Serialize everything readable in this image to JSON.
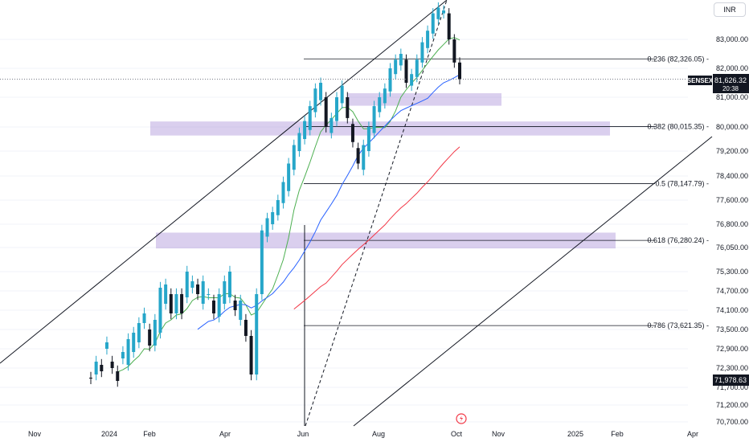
{
  "currency_label": "INR",
  "symbol_tag": "SENSEX",
  "price_tag": {
    "price": "81,626.32",
    "countdown": "20:38"
  },
  "low_tag": "71,978.63",
  "colors": {
    "up": "#26a6c9",
    "down": "#131722",
    "ma_short": "#4caf50",
    "ma_mid": "#2962ff",
    "ma_long": "#f23645",
    "zone": "#9575cd",
    "line": "#131722",
    "grid": "#f0f3fa"
  },
  "chart_data": {
    "type": "candlestick",
    "instrument": "SENSEX",
    "currency": "INR",
    "ylim": [
      70500,
      84100
    ],
    "y_ticks": [
      {
        "v": 83000,
        "label": "83,000.00"
      },
      {
        "v": 82000,
        "label": "82,000.00"
      },
      {
        "v": 81000,
        "label": "81,000.00"
      },
      {
        "v": 80000,
        "label": "80,000.00"
      },
      {
        "v": 79200,
        "label": "79,200.00"
      },
      {
        "v": 78400,
        "label": "78,400.00"
      },
      {
        "v": 77600,
        "label": "77,600.00"
      },
      {
        "v": 76800,
        "label": "76,800.00"
      },
      {
        "v": 76050,
        "label": "76,050.00"
      },
      {
        "v": 75300,
        "label": "75,300.00"
      },
      {
        "v": 74700,
        "label": "74,700.00"
      },
      {
        "v": 74100,
        "label": "74,100.00"
      },
      {
        "v": 73500,
        "label": "73,500.00"
      },
      {
        "v": 72900,
        "label": "72,900.00"
      },
      {
        "v": 72300,
        "label": "72,300.00"
      },
      {
        "v": 71700,
        "label": "71,700.00"
      },
      {
        "v": 71200,
        "label": "71,200.00"
      },
      {
        "v": 70700,
        "label": "70,700.00"
      }
    ],
    "x_labels": [
      "Nov",
      "2024",
      "Feb",
      "Apr",
      "Jun",
      "Aug",
      "Oct",
      "Nov",
      "2025",
      "Feb",
      "Apr"
    ],
    "fib_levels": [
      {
        "ratio": "0.236",
        "value": 82326.05,
        "label": "0.236 (82,326.05)"
      },
      {
        "ratio": "0.382",
        "value": 80015.35,
        "label": "0.382 (80,015.35)"
      },
      {
        "ratio": "0.5",
        "value": 78147.79,
        "label": "0.5 (78,147.79)"
      },
      {
        "ratio": "0.618",
        "value": 76280.24,
        "label": "0.618 (76,280.24)"
      },
      {
        "ratio": "0.786",
        "value": 73621.35,
        "label": "0.786 (73,621.35)"
      }
    ],
    "last_price": 81626.32,
    "marked_low": 71978.63,
    "zones": [
      {
        "from": 80850,
        "to": 81000
      },
      {
        "from": 79850,
        "to": 80050
      },
      {
        "from": 76150,
        "to": 76400
      }
    ],
    "price_path": [
      [
        72000,
        71980
      ],
      [
        72100,
        72500
      ],
      [
        72400,
        72200
      ],
      [
        72900,
        73100
      ],
      [
        72500,
        72300
      ],
      [
        72200,
        71900
      ],
      [
        72600,
        72800
      ],
      [
        72400,
        73200
      ],
      [
        72800,
        73400
      ],
      [
        73100,
        73700
      ],
      [
        73700,
        74000
      ],
      [
        73500,
        73000
      ],
      [
        73000,
        73800
      ],
      [
        73400,
        74800
      ],
      [
        74300,
        74900
      ],
      [
        74600,
        74000
      ],
      [
        74000,
        74600
      ],
      [
        74600,
        74000
      ],
      [
        74500,
        75300
      ],
      [
        74800,
        75000
      ],
      [
        74900,
        74600
      ],
      [
        74300,
        75000
      ],
      [
        74600,
        74600
      ],
      [
        74400,
        74000
      ],
      [
        73900,
        74600
      ],
      [
        74300,
        75000
      ],
      [
        74500,
        75300
      ],
      [
        74400,
        74100
      ],
      [
        73800,
        74400
      ],
      [
        73800,
        73300
      ],
      [
        73300,
        72100
      ],
      [
        72100,
        74600
      ],
      [
        74600,
        76600
      ],
      [
        76400,
        77000
      ],
      [
        76800,
        77200
      ],
      [
        77100,
        77600
      ],
      [
        77500,
        78200
      ],
      [
        77900,
        78800
      ],
      [
        78600,
        79400
      ],
      [
        79200,
        79800
      ],
      [
        79600,
        80200
      ],
      [
        79900,
        80700
      ],
      [
        80500,
        81300
      ],
      [
        80900,
        81500
      ],
      [
        81000,
        80000
      ],
      [
        79800,
        80300
      ],
      [
        80200,
        81000
      ],
      [
        80800,
        81400
      ],
      [
        81000,
        80300
      ],
      [
        80100,
        79500
      ],
      [
        79300,
        78800
      ],
      [
        78600,
        79400
      ],
      [
        79200,
        80000
      ],
      [
        79800,
        80700
      ],
      [
        80500,
        81000
      ],
      [
        80800,
        81300
      ],
      [
        81200,
        82000
      ],
      [
        81800,
        82300
      ],
      [
        82100,
        82500
      ],
      [
        82300,
        81500
      ],
      [
        81400,
        81800
      ],
      [
        81700,
        82300
      ],
      [
        82200,
        82900
      ],
      [
        82700,
        83300
      ],
      [
        83200,
        83900
      ],
      [
        83700,
        84100
      ],
      [
        83900,
        84000
      ],
      [
        83900,
        83000
      ],
      [
        83000,
        82200
      ],
      [
        82200,
        81626
      ]
    ]
  }
}
